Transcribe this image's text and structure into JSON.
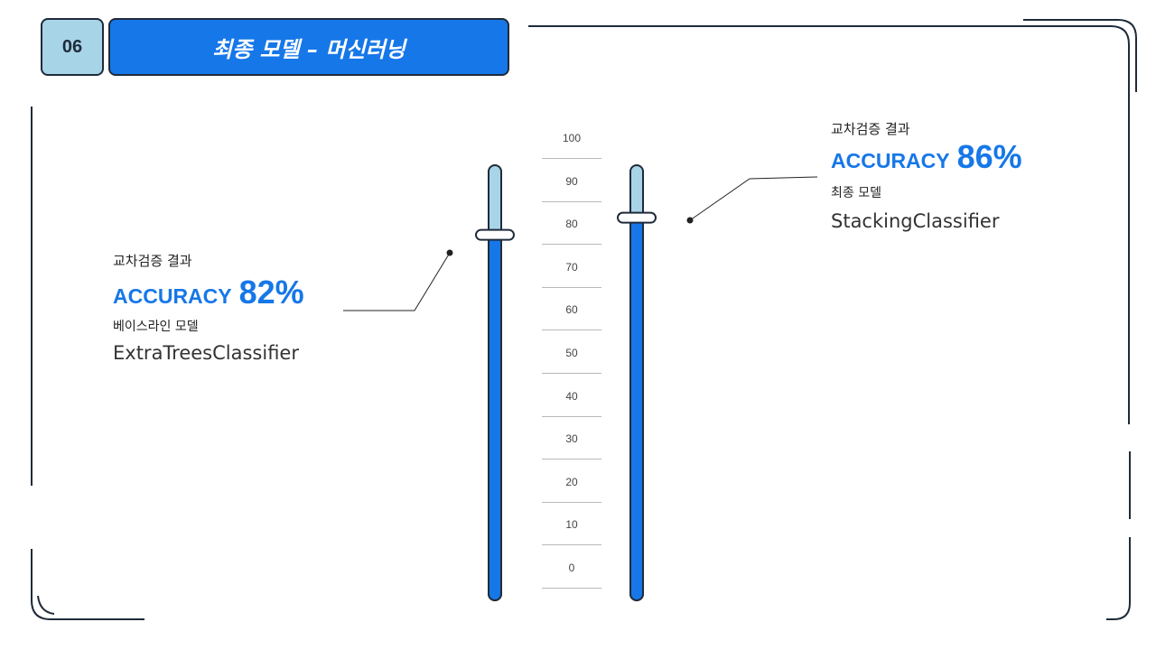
{
  "header": {
    "number": "06",
    "title": "최종 모델 – 머신러닝"
  },
  "colors": {
    "accent": "#1677e8",
    "accent_light": "#a8d4e8",
    "frame": "#1f2b3a"
  },
  "scale": {
    "ticks": [
      "100",
      "90",
      "80",
      "70",
      "60",
      "50",
      "40",
      "30",
      "20",
      "10",
      "0"
    ]
  },
  "baseline": {
    "caption": "교차검증 결과",
    "metric_label": "ACCURACY",
    "metric_value": "82%",
    "model_caption": "베이스라인 모델",
    "model_name": "ExtraTreesClassifier",
    "accuracy_percent": 82
  },
  "final": {
    "caption": "교차검증 결과",
    "metric_label": "ACCURACY",
    "metric_value": "86%",
    "model_caption": "최종 모델",
    "model_name": "StackingClassifier",
    "accuracy_percent": 86
  }
}
